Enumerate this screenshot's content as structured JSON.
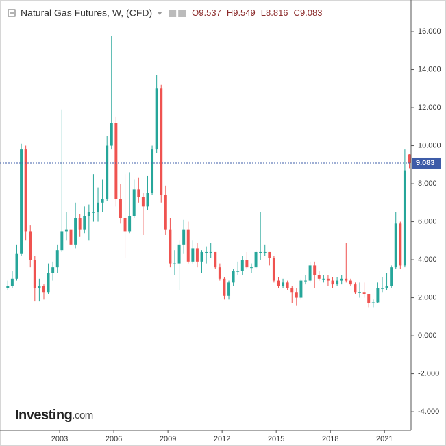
{
  "chart_data": {
    "type": "candlestick",
    "title": "Natural Gas Futures, W, (CFD)",
    "ohlc_labels": [
      "O",
      "H",
      "L",
      "C"
    ],
    "logo": [
      "Investing",
      ".com"
    ],
    "up_color": "#26a69a",
    "down_color": "#ef5350",
    "last_line_color": "#3d5ca8",
    "xlim": [
      2000,
      2022.47
    ],
    "xticks": [
      2003,
      2006,
      2009,
      2012,
      2015,
      2018,
      2021
    ],
    "ylim": [
      -4.97,
      17.37
    ],
    "yticks": [
      {
        "value": -4,
        "label": "-4.000"
      },
      {
        "value": -2,
        "label": "-2.000"
      },
      {
        "value": 0,
        "label": "0.000"
      },
      {
        "value": 2,
        "label": "2.000"
      },
      {
        "value": 4,
        "label": "4.000"
      },
      {
        "value": 6,
        "label": "6.000"
      },
      {
        "value": 8,
        "label": "8.000"
      },
      {
        "value": 10,
        "label": "10.000"
      },
      {
        "value": 12,
        "label": "12.000"
      },
      {
        "value": 14,
        "label": "14.000"
      },
      {
        "value": 16,
        "label": "16.000"
      }
    ],
    "x": [
      2000.125,
      2000.375,
      2000.625,
      2000.875,
      2001.125,
      2001.375,
      2001.625,
      2001.875,
      2002.125,
      2002.375,
      2002.625,
      2002.875,
      2003.125,
      2003.375,
      2003.625,
      2003.875,
      2004.125,
      2004.375,
      2004.625,
      2004.875,
      2005.125,
      2005.375,
      2005.625,
      2005.875,
      2006.125,
      2006.375,
      2006.625,
      2006.875,
      2007.125,
      2007.375,
      2007.625,
      2007.875,
      2008.125,
      2008.375,
      2008.625,
      2008.875,
      2009.125,
      2009.375,
      2009.625,
      2009.875,
      2010.125,
      2010.375,
      2010.625,
      2010.875,
      2011.125,
      2011.375,
      2011.625,
      2011.875,
      2012.125,
      2012.375,
      2012.625,
      2012.875,
      2013.125,
      2013.375,
      2013.625,
      2013.875,
      2014.125,
      2014.375,
      2014.625,
      2014.875,
      2015.125,
      2015.375,
      2015.625,
      2015.875,
      2016.125,
      2016.375,
      2016.625,
      2016.875,
      2017.125,
      2017.375,
      2017.625,
      2017.875,
      2018.125,
      2018.375,
      2018.625,
      2018.875,
      2019.125,
      2019.375,
      2019.625,
      2019.875,
      2020.125,
      2020.375,
      2020.625,
      2020.875,
      2021.125,
      2021.375,
      2021.625,
      2021.875,
      2022.125,
      2022.375
    ],
    "open": [
      2.5,
      2.6,
      3.0,
      4.3,
      9.8,
      5.5,
      4.0,
      2.5,
      2.6,
      2.3,
      3.3,
      3.6,
      4.5,
      5.5,
      5.6,
      4.8,
      6.2,
      5.6,
      6.3,
      6.5,
      6.5,
      7.0,
      7.2,
      10.0,
      11.2,
      7.2,
      6.2,
      5.5,
      6.3,
      7.7,
      7.3,
      6.8,
      7.5,
      9.8,
      13.0,
      7.4,
      5.6,
      3.8,
      3.8,
      4.8,
      5.6,
      3.9,
      4.6,
      3.9,
      4.4,
      4.4,
      4.4,
      3.6,
      3.0,
      2.1,
      2.8,
      3.4,
      3.4,
      4.0,
      3.6,
      3.6,
      4.4,
      4.4,
      4.4,
      4.1,
      2.9,
      2.6,
      2.8,
      2.5,
      2.3,
      2.0,
      2.9,
      2.9,
      3.7,
      3.2,
      3.0,
      3.0,
      2.9,
      2.7,
      2.9,
      3.0,
      2.9,
      2.7,
      2.3,
      2.3,
      2.2,
      1.7,
      1.75,
      2.5,
      2.5,
      2.6,
      3.6,
      5.9,
      3.7,
      9.537
    ],
    "high": [
      2.9,
      3.4,
      4.8,
      10.1,
      10.0,
      5.8,
      4.2,
      3.0,
      2.7,
      3.8,
      3.9,
      4.8,
      11.9,
      6.5,
      5.8,
      7.0,
      6.4,
      6.8,
      6.9,
      8.5,
      7.8,
      8.2,
      10.5,
      15.78,
      11.5,
      8.0,
      8.5,
      8.6,
      8.2,
      8.3,
      7.5,
      8.4,
      10.0,
      13.7,
      13.2,
      7.9,
      6.2,
      4.5,
      5.0,
      6.1,
      6.0,
      5.0,
      4.9,
      4.5,
      4.7,
      4.9,
      4.4,
      3.8,
      3.1,
      2.9,
      3.5,
      3.9,
      4.2,
      4.4,
      3.8,
      4.5,
      6.5,
      4.8,
      4.4,
      4.2,
      3.1,
      3.0,
      2.9,
      2.6,
      2.5,
      3.0,
      3.2,
      3.9,
      3.9,
      3.4,
      3.2,
      3.2,
      3.1,
      3.1,
      3.2,
      4.9,
      3.0,
      2.8,
      2.8,
      2.8,
      2.2,
      1.9,
      2.8,
      3.1,
      3.3,
      3.7,
      6.5,
      6.0,
      9.8,
      9.549
    ],
    "low": [
      2.4,
      2.5,
      2.9,
      4.2,
      5.0,
      3.6,
      1.8,
      1.8,
      1.9,
      2.2,
      2.9,
      3.3,
      4.4,
      5.0,
      4.5,
      4.6,
      5.2,
      5.4,
      5.0,
      6.0,
      6.0,
      6.5,
      7.1,
      9.8,
      6.8,
      5.9,
      4.1,
      5.4,
      6.2,
      7.0,
      5.3,
      6.6,
      7.4,
      9.6,
      7.0,
      5.3,
      3.6,
      3.2,
      2.4,
      4.3,
      3.8,
      3.8,
      3.6,
      3.3,
      3.8,
      4.1,
      3.5,
      2.9,
      1.9,
      1.9,
      2.6,
      3.2,
      3.2,
      3.5,
      3.3,
      3.5,
      4.0,
      4.2,
      3.7,
      2.8,
      2.5,
      2.5,
      2.4,
      1.7,
      1.6,
      1.9,
      2.7,
      2.8,
      2.5,
      2.9,
      2.8,
      2.6,
      2.5,
      2.6,
      2.7,
      2.8,
      2.6,
      2.2,
      2.0,
      2.0,
      1.5,
      1.5,
      1.7,
      2.3,
      2.4,
      2.5,
      3.5,
      3.5,
      3.6,
      8.816
    ],
    "close": [
      2.6,
      3.0,
      4.3,
      9.8,
      5.5,
      4.0,
      2.5,
      2.6,
      2.3,
      3.3,
      3.6,
      4.5,
      5.5,
      5.6,
      4.8,
      6.2,
      5.6,
      6.3,
      6.5,
      6.5,
      7.0,
      7.2,
      10.0,
      11.2,
      7.2,
      6.2,
      5.5,
      6.3,
      7.7,
      7.3,
      6.8,
      7.5,
      9.8,
      13.0,
      7.4,
      5.6,
      3.8,
      3.8,
      4.8,
      5.6,
      3.9,
      4.6,
      3.9,
      4.4,
      4.4,
      4.4,
      3.6,
      3.0,
      2.1,
      2.8,
      3.4,
      3.4,
      4.0,
      3.6,
      3.6,
      4.4,
      4.4,
      4.4,
      4.1,
      2.9,
      2.6,
      2.8,
      2.5,
      2.3,
      2.0,
      2.9,
      2.9,
      3.7,
      3.2,
      3.0,
      3.0,
      2.9,
      2.7,
      2.9,
      3.0,
      2.9,
      2.7,
      2.3,
      2.3,
      2.2,
      1.7,
      1.75,
      2.5,
      2.5,
      2.6,
      3.6,
      5.9,
      3.7,
      8.7,
      9.083
    ]
  }
}
